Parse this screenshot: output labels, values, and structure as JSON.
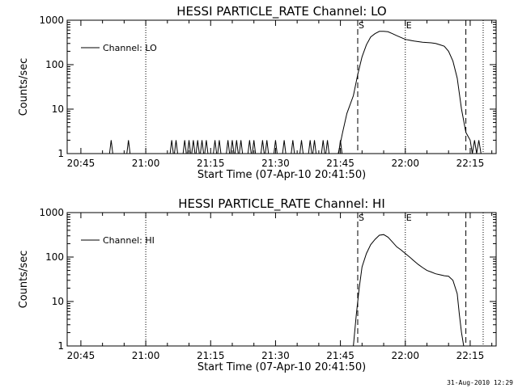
{
  "footer": {
    "timestamp": "31-Aug-2010 12:29"
  },
  "chart_data": [
    {
      "type": "line",
      "title": "HESSI PARTICLE_RATE Channel: LO",
      "xlabel": "Start Time (07-Apr-10 20:41:50)",
      "ylabel": "Counts/sec",
      "yscale": "log",
      "xlim": [
        "20:41:50",
        "22:21:00"
      ],
      "ylim": [
        1,
        1000
      ],
      "x_ticks": [
        "20:45",
        "21:00",
        "21:15",
        "21:30",
        "21:45",
        "22:00",
        "22:15"
      ],
      "y_ticks": [
        "1",
        "10",
        "100",
        "1000"
      ],
      "legend": {
        "label": "Channel: LO",
        "position": "top-left"
      },
      "vlines": [
        {
          "time": "21:00",
          "style": "dotted",
          "label": ""
        },
        {
          "time": "21:49",
          "style": "dashed",
          "label": "S"
        },
        {
          "time": "22:00",
          "style": "dotted",
          "label": "E"
        },
        {
          "time": "22:14",
          "style": "dashed",
          "label": ""
        },
        {
          "time": "22:18",
          "style": "dotted",
          "label": ""
        }
      ],
      "spikes": [
        "20:52",
        "20:56",
        "21:06",
        "21:07",
        "21:09",
        "21:10",
        "21:11",
        "21:12",
        "21:13",
        "21:14",
        "21:16",
        "21:17",
        "21:19",
        "21:20",
        "21:21",
        "21:22",
        "21:24",
        "21:25",
        "21:27",
        "21:28",
        "21:30",
        "21:32",
        "21:34",
        "21:36",
        "21:38",
        "21:39",
        "21:41",
        "21:42",
        "21:45"
      ],
      "series": [
        {
          "name": "Channel: LO",
          "x": [
            "21:44:30",
            "21:45:30",
            "21:46:30",
            "21:48:00",
            "21:49:00",
            "21:50:00",
            "21:51:00",
            "21:52:00",
            "21:53:00",
            "21:54:00",
            "21:55:00",
            "21:56:00",
            "21:57:00",
            "21:58:00",
            "22:00:00",
            "22:02:00",
            "22:04:00",
            "22:06:00",
            "22:07:00",
            "22:08:00",
            "22:09:00",
            "22:10:00",
            "22:11:00",
            "22:12:00",
            "22:13:00",
            "22:14:00",
            "22:15:00",
            "22:15:30",
            "22:16:00",
            "22:16:30",
            "22:17:00",
            "22:17:30"
          ],
          "y": [
            1,
            3,
            8,
            20,
            60,
            150,
            280,
            420,
            500,
            560,
            560,
            550,
            500,
            450,
            370,
            340,
            320,
            310,
            300,
            280,
            260,
            200,
            120,
            50,
            10,
            3,
            2,
            1,
            2,
            1,
            2,
            1
          ]
        }
      ]
    },
    {
      "type": "line",
      "title": "HESSI PARTICLE_RATE Channel: HI",
      "xlabel": "Start Time (07-Apr-10 20:41:50)",
      "ylabel": "Counts/sec",
      "yscale": "log",
      "xlim": [
        "20:41:50",
        "22:21:00"
      ],
      "ylim": [
        1,
        1000
      ],
      "x_ticks": [
        "20:45",
        "21:00",
        "21:15",
        "21:30",
        "21:45",
        "22:00",
        "22:15"
      ],
      "y_ticks": [
        "1",
        "10",
        "100",
        "1000"
      ],
      "legend": {
        "label": "Channel: HI",
        "position": "top-left"
      },
      "vlines": [
        {
          "time": "21:00",
          "style": "dotted",
          "label": ""
        },
        {
          "time": "21:49",
          "style": "dashed",
          "label": "S"
        },
        {
          "time": "22:00",
          "style": "dotted",
          "label": "E"
        },
        {
          "time": "22:14",
          "style": "dashed",
          "label": ""
        },
        {
          "time": "22:18",
          "style": "dotted",
          "label": ""
        }
      ],
      "spikes": [],
      "series": [
        {
          "name": "Channel: HI",
          "x": [
            "21:48:00",
            "21:48:40",
            "21:49:20",
            "21:50:00",
            "21:51:00",
            "21:52:00",
            "21:53:00",
            "21:54:00",
            "21:55:00",
            "21:56:00",
            "21:57:00",
            "21:58:00",
            "21:59:00",
            "22:00:00",
            "22:01:00",
            "22:02:00",
            "22:03:00",
            "22:04:00",
            "22:05:00",
            "22:06:00",
            "22:07:00",
            "22:08:00",
            "22:09:00",
            "22:10:00",
            "22:11:00",
            "22:12:00",
            "22:12:30",
            "22:13:00",
            "22:13:30"
          ],
          "y": [
            1,
            5,
            20,
            60,
            120,
            190,
            250,
            310,
            320,
            280,
            220,
            170,
            145,
            120,
            100,
            82,
            68,
            58,
            50,
            46,
            42,
            40,
            38,
            37,
            30,
            15,
            5,
            2,
            1
          ]
        }
      ]
    }
  ]
}
